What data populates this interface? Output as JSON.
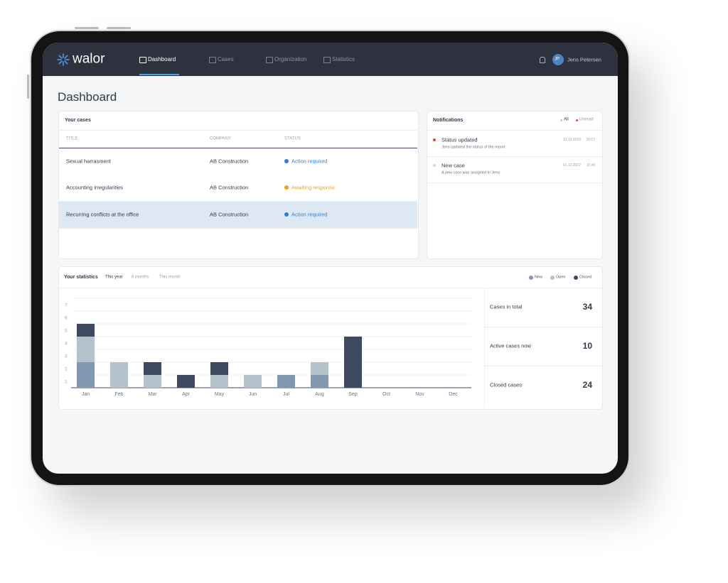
{
  "nav": {
    "logo": "walor",
    "items": [
      "Dashboard",
      "Cases",
      "Organization",
      "Statistics"
    ],
    "active": 0,
    "user_initials": "JP",
    "user_name": "Jens Petersen"
  },
  "page_title": "Dashboard",
  "cases": {
    "title": "Your cases",
    "columns": [
      "TITLE",
      "COMPANY",
      "STATUS"
    ],
    "selected_row": 2,
    "rows": [
      {
        "title": "Sexual harrasment",
        "company": "AB Construction",
        "status": "Action required",
        "status_color": "#2f7fd1"
      },
      {
        "title": "Accounting irregularities",
        "company": "AB Construction",
        "status": "Awaiting response",
        "status_color": "#f0a020"
      },
      {
        "title": "Recurring conflicts at the office",
        "company": "AB Construction",
        "status": "Action required",
        "status_color": "#2f7fd1"
      }
    ]
  },
  "notifications": {
    "title": "Notifications",
    "filters": [
      "All",
      "Unread"
    ],
    "items": [
      {
        "title": "Status updated",
        "text": "Jens updated the status of the report",
        "date": "12.12.2022",
        "time": "16:07",
        "unread": true
      },
      {
        "title": "New case",
        "text": "A new case was assigned to Jens",
        "date": "01.12.2022",
        "time": "11:49",
        "unread": false
      }
    ]
  },
  "statistics": {
    "title": "Your statistics",
    "periods": [
      "This year",
      "6 months",
      "This month"
    ],
    "active_period": 0,
    "chart": {
      "type": "stacked_bar",
      "categories": [
        "Jan",
        "Feb",
        "Mar",
        "Apr",
        "May",
        "Jun",
        "Jul",
        "Aug",
        "Sep",
        "Oct",
        "Nov",
        "Dec"
      ],
      "series": [
        {
          "name": "New",
          "color": "#8497b0",
          "values": [
            2,
            0,
            0,
            0,
            0,
            0,
            1,
            1,
            0,
            0,
            0,
            0
          ]
        },
        {
          "name": "Open",
          "color": "#b3c2cb",
          "values": [
            2,
            2,
            1,
            0,
            1,
            1,
            0,
            1,
            0,
            0,
            0,
            0
          ]
        },
        {
          "name": "Closed",
          "color": "#3e4a5f",
          "values": [
            1,
            0,
            1,
            1,
            1,
            0,
            0,
            0,
            4,
            0,
            0,
            0
          ]
        }
      ],
      "ylim": [
        0,
        7
      ],
      "yticks": [
        1,
        2,
        3,
        4,
        5,
        6,
        7
      ],
      "grid": true
    },
    "summary": [
      {
        "label": "Cases in total",
        "value": 34
      },
      {
        "label": "Active cases now",
        "value": 10
      },
      {
        "label": "Closed cases",
        "value": 24
      }
    ]
  }
}
